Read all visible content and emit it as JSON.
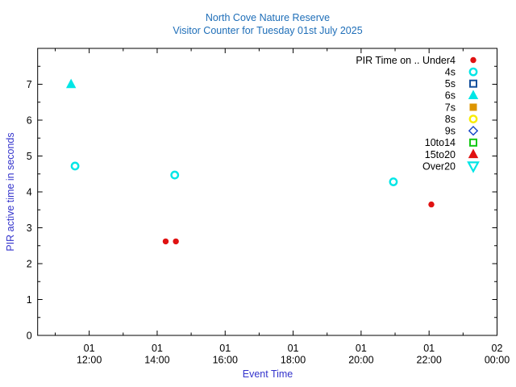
{
  "colors": {
    "title_blue": "#1e6eb8",
    "axis_label_blue": "#3333cc",
    "frame_black": "#000000",
    "red": "#e01212",
    "cyan": "#00e6e6",
    "navy": "#15509c",
    "orange": "#dd9500",
    "yellow": "#f8ec00",
    "diamond_blue": "#1545c8",
    "green": "#14c814"
  },
  "chart_data": {
    "type": "scatter",
    "title": "North Cove Nature Reserve",
    "subtitle": "Visitor Counter for Tuesday 01st July 2025",
    "xlabel": "Event Time",
    "ylabel": "PIR active time in seconds",
    "grid": "off",
    "legend_position": "top-right-inside",
    "x_axis": {
      "start": "10:29",
      "end": "24:00",
      "major_ticks": [
        {
          "day": "01",
          "time": "12:00",
          "at": "12:00"
        },
        {
          "day": "01",
          "time": "14:00",
          "at": "14:00"
        },
        {
          "day": "01",
          "time": "16:00",
          "at": "16:00"
        },
        {
          "day": "01",
          "time": "18:00",
          "at": "18:00"
        },
        {
          "day": "01",
          "time": "20:00",
          "at": "20:00"
        },
        {
          "day": "01",
          "time": "22:00",
          "at": "22:00"
        },
        {
          "day": "02",
          "time": "00:00",
          "at": "24:00"
        }
      ],
      "minor_ticks": [
        "11:00",
        "13:00",
        "15:00",
        "17:00",
        "19:00",
        "21:00",
        "23:00"
      ]
    },
    "y_axis": {
      "min": 0,
      "max": 8,
      "major_ticks": [
        0,
        1,
        2,
        3,
        4,
        5,
        6,
        7
      ],
      "minor_ticks": [
        0.5,
        1.5,
        2.5,
        3.5,
        4.5,
        5.5,
        6.5,
        7.5
      ]
    },
    "series": [
      {
        "name": "PIR Time on .. Under4",
        "marker": "circle-filled",
        "color": "#e01212",
        "points": [
          {
            "t": "14:15",
            "y": 2.62
          },
          {
            "t": "14:33",
            "y": 2.62
          },
          {
            "t": "22:04",
            "y": 3.65
          }
        ]
      },
      {
        "name": "4s",
        "marker": "circle-open",
        "color": "#00e6e6",
        "points": [
          {
            "t": "11:35",
            "y": 4.72
          },
          {
            "t": "14:31",
            "y": 4.47
          },
          {
            "t": "20:57",
            "y": 4.28
          }
        ]
      },
      {
        "name": "5s",
        "marker": "square-open",
        "color": "#15509c",
        "points": []
      },
      {
        "name": "6s",
        "marker": "triangle-up-filled",
        "color": "#00e6e6",
        "points": [
          {
            "t": "11:28",
            "y": 7.0
          }
        ]
      },
      {
        "name": "7s",
        "marker": "square-filled",
        "color": "#dd9500",
        "points": []
      },
      {
        "name": "8s",
        "marker": "circle-open",
        "color": "#f8ec00",
        "points": []
      },
      {
        "name": "9s",
        "marker": "diamond-open",
        "color": "#1545c8",
        "points": []
      },
      {
        "name": "10to14",
        "marker": "square-open",
        "color": "#14c814",
        "points": []
      },
      {
        "name": "15to20",
        "marker": "triangle-up-filled",
        "color": "#e01212",
        "points": []
      },
      {
        "name": "Over20",
        "marker": "triangle-down-open",
        "color": "#00e6e6",
        "points": []
      }
    ]
  }
}
